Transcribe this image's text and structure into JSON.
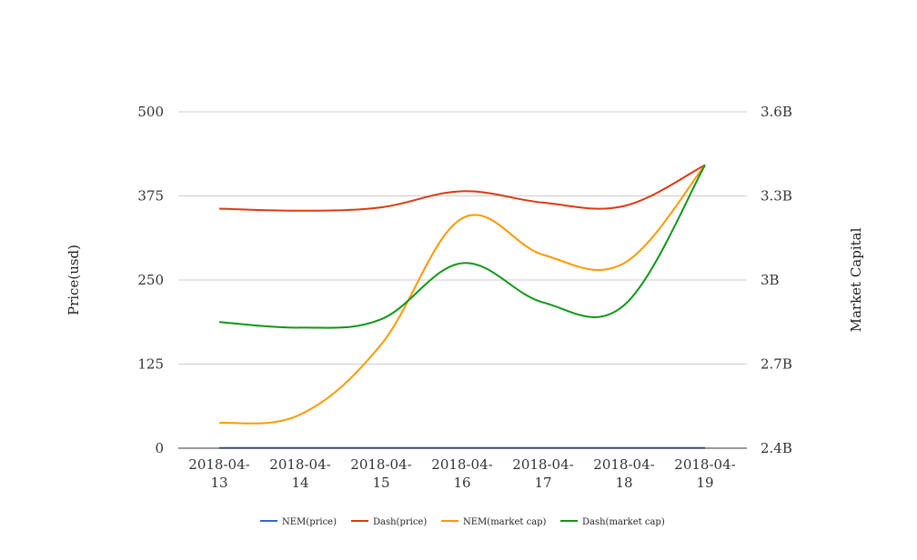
{
  "chart_data": {
    "type": "line",
    "categories": [
      "2018-04-13",
      "2018-04-14",
      "2018-04-15",
      "2018-04-16",
      "2018-04-17",
      "2018-04-18",
      "2018-04-19"
    ],
    "category_lines": [
      [
        "2018-04-",
        "13"
      ],
      [
        "2018-04-",
        "14"
      ],
      [
        "2018-04-",
        "15"
      ],
      [
        "2018-04-",
        "16"
      ],
      [
        "2018-04-",
        "17"
      ],
      [
        "2018-04-",
        "18"
      ],
      [
        "2018-04-",
        "19"
      ]
    ],
    "y_left": {
      "label": "Price(usd)",
      "ylim": [
        0,
        500
      ],
      "ticks": [
        "0",
        "125",
        "250",
        "375",
        "500"
      ]
    },
    "y_right": {
      "label": "Market Capital",
      "ylim": [
        2400000000,
        3600000000
      ],
      "ticks": [
        "2.4B",
        "2.7B",
        "3B",
        "3.3B",
        "3.6B"
      ]
    },
    "grid": true,
    "legend_position": "bottom",
    "series": [
      {
        "name": "NEM(price)",
        "axis": "left",
        "color": "#3366cc",
        "values": [
          0.3,
          0.3,
          0.35,
          0.35,
          0.32,
          0.31,
          0.35
        ]
      },
      {
        "name": "Dash(price)",
        "axis": "left",
        "color": "#dc3912",
        "values": [
          356,
          353,
          358,
          382,
          365,
          360,
          421
        ]
      },
      {
        "name": "NEM(market cap)",
        "axis": "right",
        "color": "#ff9900",
        "values": [
          2490000000,
          2520000000,
          2770000000,
          3220000000,
          3090000000,
          3060000000,
          3410000000
        ]
      },
      {
        "name": "Dash(market cap)",
        "axis": "right",
        "color": "#109618",
        "values": [
          2850000000,
          2830000000,
          2860000000,
          3060000000,
          2920000000,
          2910000000,
          3410000000
        ]
      }
    ]
  }
}
